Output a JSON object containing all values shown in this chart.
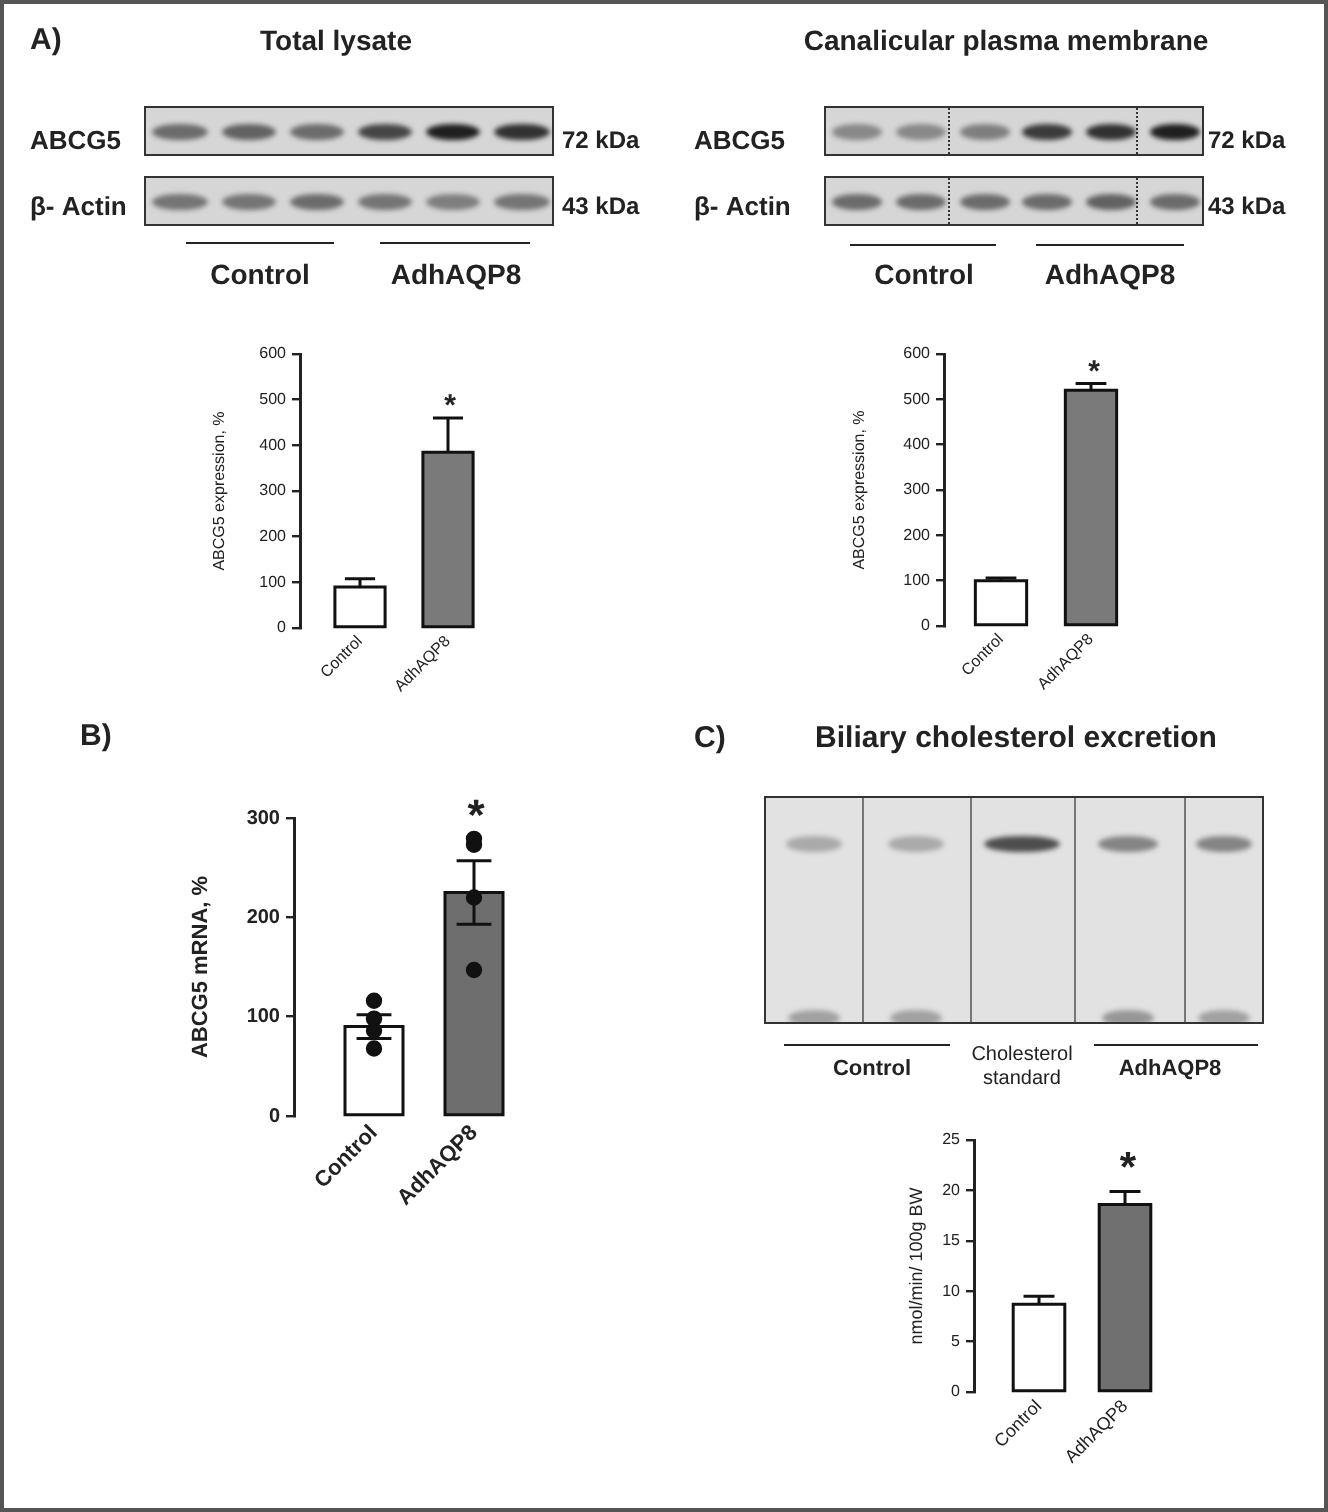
{
  "chart_data": [
    {
      "type": "bar",
      "title": "Total lysate",
      "ylabel": "ABCG5 expression, %",
      "categories": [
        "Control",
        "AdhAQP8"
      ],
      "values": [
        90,
        385
      ],
      "colors": [
        "#ffffff",
        "#7a7a7a"
      ],
      "errors": [
        [
          90,
          108
        ],
        [
          385,
          460
        ]
      ],
      "ylim": [
        0,
        600
      ],
      "yticks": [
        0,
        100,
        200,
        300,
        400,
        500,
        600
      ],
      "annotations": [
        "A)",
        "ABCG5",
        "72 kDa",
        "β- Actin",
        "43 kDa",
        "Control",
        "AdhAQP8",
        "*"
      ]
    },
    {
      "type": "bar",
      "title": "Canalicular plasma membrane",
      "ylabel": "ABCG5 expression, %",
      "categories": [
        "Control",
        "AdhAQP8"
      ],
      "values": [
        100,
        520
      ],
      "colors": [
        "#ffffff",
        "#7a7a7a"
      ],
      "errors": [
        [
          100,
          106
        ],
        [
          520,
          535
        ]
      ],
      "ylim": [
        0,
        600
      ],
      "yticks": [
        0,
        100,
        200,
        300,
        400,
        500,
        600
      ],
      "annotations": [
        "ABCG5",
        "72 kDa",
        "β- Actin",
        "43 kDa",
        "Control",
        "AdhAQP8",
        "*"
      ]
    },
    {
      "type": "bar",
      "ylabel": "ABCG5 mRNA, %",
      "categories": [
        "Control",
        "AdhAQP8"
      ],
      "series": [
        {
          "colors": [
            "#ffffff",
            "#6e6e6e"
          ],
          "values": [
            90,
            225
          ],
          "errors": [
            12,
            32
          ]
        },
        {
          "type": "scatter",
          "x": [
            "Control",
            "Control",
            "Control",
            "Control",
            "AdhAQP8",
            "AdhAQP8",
            "AdhAQP8",
            "AdhAQP8"
          ],
          "values": [
            116,
            98,
            86,
            68,
            279,
            273,
            220,
            147
          ],
          "color": "#111111",
          "marker": "circle"
        }
      ],
      "ylim": [
        0,
        300
      ],
      "yticks": [
        0,
        100,
        200,
        300
      ],
      "annotations": [
        "B)",
        "*"
      ]
    },
    {
      "type": "bar",
      "title": "Biliary cholesterol excretion",
      "ylabel": "nmol/min/ 100g BW",
      "categories": [
        "Control",
        "AdhAQP8"
      ],
      "values": [
        8.7,
        18.6
      ],
      "colors": [
        "#ffffff",
        "#707070"
      ],
      "errors": [
        [
          8.7,
          9.5
        ],
        [
          18.6,
          19.9
        ]
      ],
      "ylim": [
        0,
        25
      ],
      "yticks": [
        0,
        5,
        10,
        15,
        20,
        25
      ],
      "annotations": [
        "C)",
        "Control",
        "Cholesterol standard",
        "AdhAQP8",
        "*"
      ]
    }
  ]
}
